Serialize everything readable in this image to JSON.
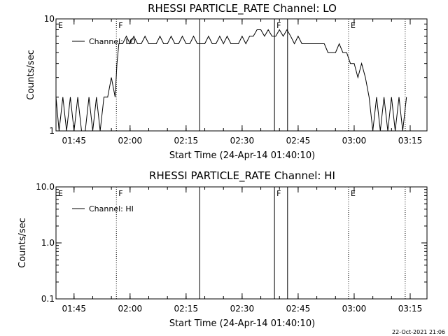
{
  "footer": {
    "timestamp": "22-Oct-2021 21:06"
  },
  "chart_data": [
    {
      "type": "line",
      "title": "RHESSI PARTICLE_RATE Channel: LO",
      "xlabel": "Start Time (24-Apr-14 01:40:10)",
      "ylabel": "Counts/sec",
      "scale_y": "log",
      "xlim": [
        "01:40:10",
        "03:19:30"
      ],
      "ylim": [
        1,
        10
      ],
      "x_ticks": [
        "01:45",
        "02:00",
        "02:15",
        "02:30",
        "02:45",
        "03:00",
        "03:15"
      ],
      "y_ticks": [
        "1",
        "10"
      ],
      "legend": {
        "position": "top-left",
        "entries": [
          "Channel: LO"
        ]
      },
      "markers": [
        {
          "label": "E",
          "time": "01:40:10",
          "style": "edge"
        },
        {
          "label": "F",
          "time": "01:56:20",
          "style": "dotted"
        },
        {
          "label": "",
          "time": "02:18:40",
          "style": "solid"
        },
        {
          "label": "F",
          "time": "02:38:40",
          "style": "solid"
        },
        {
          "label": "",
          "time": "02:42:10",
          "style": "solid"
        },
        {
          "label": "E",
          "time": "02:58:30",
          "style": "dotted"
        },
        {
          "label": "",
          "time": "03:13:40",
          "style": "dotted"
        }
      ],
      "series": [
        {
          "name": "Channel: LO",
          "x": [
            "01:40:10",
            "01:41:00",
            "01:42:00",
            "01:43:00",
            "01:44:00",
            "01:45:00",
            "01:46:00",
            "01:47:00",
            "01:48:00",
            "01:49:00",
            "01:50:00",
            "01:51:00",
            "01:52:00",
            "01:53:00",
            "01:54:00",
            "01:55:00",
            "01:56:00",
            "01:56:30",
            "01:57:00",
            "01:58:00",
            "01:59:00",
            "02:00:00",
            "02:01:00",
            "02:02:00",
            "02:03:00",
            "02:04:00",
            "02:05:00",
            "02:06:00",
            "02:07:00",
            "02:08:00",
            "02:09:00",
            "02:10:00",
            "02:11:00",
            "02:12:00",
            "02:13:00",
            "02:14:00",
            "02:15:00",
            "02:16:00",
            "02:17:00",
            "02:18:00",
            "02:19:00",
            "02:20:00",
            "02:21:00",
            "02:22:00",
            "02:23:00",
            "02:24:00",
            "02:25:00",
            "02:26:00",
            "02:27:00",
            "02:28:00",
            "02:29:00",
            "02:30:00",
            "02:31:00",
            "02:32:00",
            "02:33:00",
            "02:34:00",
            "02:35:00",
            "02:36:00",
            "02:37:00",
            "02:38:00",
            "02:39:00",
            "02:40:00",
            "02:41:00",
            "02:42:00",
            "02:43:00",
            "02:44:00",
            "02:45:00",
            "02:46:00",
            "02:47:00",
            "02:48:00",
            "02:49:00",
            "02:50:00",
            "02:51:00",
            "02:52:00",
            "02:53:00",
            "02:54:00",
            "02:55:00",
            "02:56:00",
            "02:57:00",
            "02:58:00",
            "02:59:00",
            "03:00:00",
            "03:01:00",
            "03:02:00",
            "03:03:00",
            "03:04:00",
            "03:05:00",
            "03:06:00",
            "03:07:00",
            "03:08:00",
            "03:09:00",
            "03:10:00",
            "03:11:00",
            "03:12:00",
            "03:13:00",
            "03:14:00"
          ],
          "values": [
            2,
            1,
            2,
            1,
            2,
            1,
            2,
            1,
            1,
            2,
            1,
            2,
            1,
            2,
            2,
            3,
            2,
            4,
            6,
            6,
            7,
            6,
            7,
            6,
            6,
            7,
            6,
            6,
            6,
            7,
            6,
            6,
            7,
            6,
            6,
            7,
            6,
            6,
            7,
            6,
            6,
            6,
            7,
            6,
            6,
            7,
            6,
            7,
            6,
            6,
            6,
            7,
            6,
            7,
            7,
            8,
            8,
            7,
            8,
            7,
            7,
            8,
            7,
            8,
            7,
            6,
            7,
            6,
            6,
            6,
            6,
            6,
            6,
            6,
            5,
            5,
            5,
            6,
            5,
            5,
            4,
            4,
            3,
            4,
            3,
            2,
            1,
            2,
            1,
            2,
            1,
            2,
            1,
            2,
            1,
            2
          ]
        }
      ]
    },
    {
      "type": "line",
      "title": "RHESSI PARTICLE_RATE Channel: HI",
      "xlabel": "Start Time (24-Apr-14 01:40:10)",
      "ylabel": "Counts/sec",
      "scale_y": "log",
      "xlim": [
        "01:40:10",
        "03:19:30"
      ],
      "ylim": [
        0.1,
        10
      ],
      "x_ticks": [
        "01:45",
        "02:00",
        "02:15",
        "02:30",
        "02:45",
        "03:00",
        "03:15"
      ],
      "y_ticks": [
        "0.1",
        "1.0",
        "10.0"
      ],
      "legend": {
        "position": "top-left",
        "entries": [
          "Channel: HI"
        ]
      },
      "markers": [
        {
          "label": "E",
          "time": "01:40:10",
          "style": "edge"
        },
        {
          "label": "F",
          "time": "01:56:20",
          "style": "dotted"
        },
        {
          "label": "",
          "time": "02:18:40",
          "style": "solid"
        },
        {
          "label": "F",
          "time": "02:38:40",
          "style": "solid"
        },
        {
          "label": "",
          "time": "02:42:10",
          "style": "solid"
        },
        {
          "label": "E",
          "time": "02:58:30",
          "style": "dotted"
        },
        {
          "label": "",
          "time": "03:13:40",
          "style": "dotted"
        }
      ],
      "series": [
        {
          "name": "Channel: HI",
          "x": [],
          "values": []
        }
      ]
    }
  ]
}
